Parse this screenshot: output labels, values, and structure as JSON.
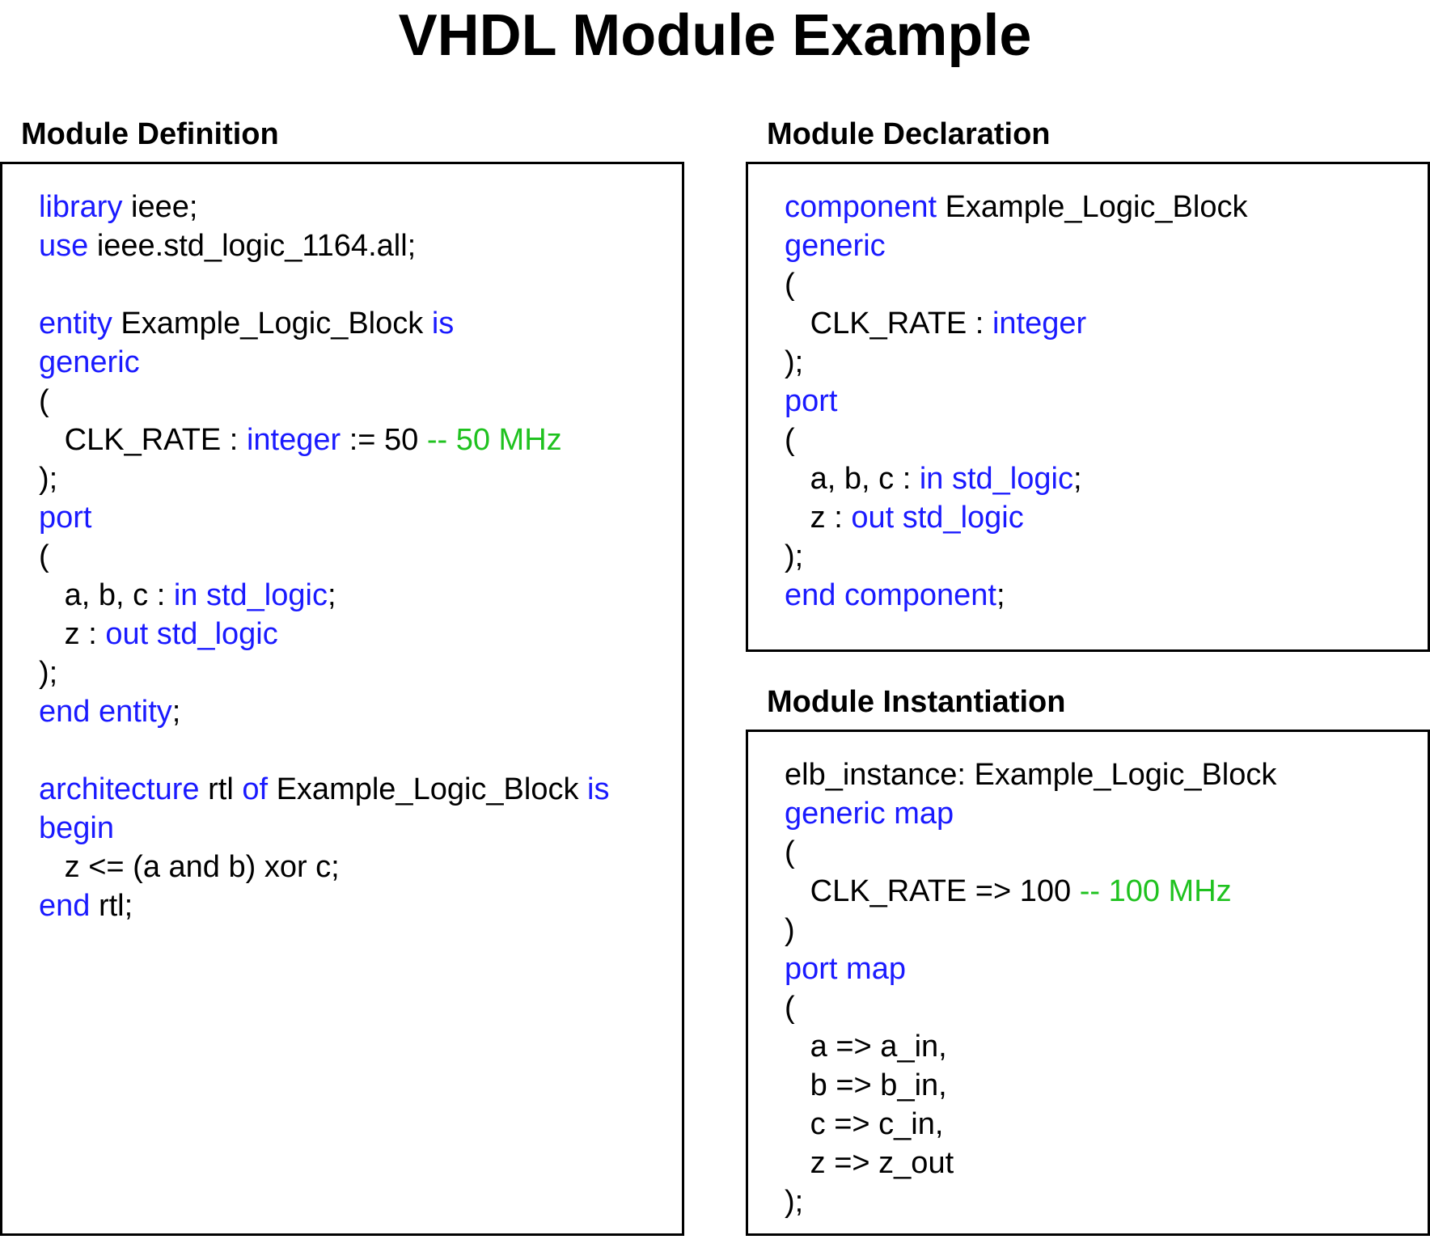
{
  "title": "VHDL Module Example",
  "colors": {
    "keyword": "#1a1aff",
    "comment": "#1fc21f",
    "text": "#000000",
    "border": "#000000"
  },
  "panels": {
    "definition": {
      "heading": "Module Definition",
      "lines": [
        [
          [
            "kw",
            "library"
          ],
          [
            "tx",
            " ieee;"
          ]
        ],
        [
          [
            "kw",
            "use"
          ],
          [
            "tx",
            " ieee.std_logic_1164.all;"
          ]
        ],
        [],
        [
          [
            "kw",
            "entity"
          ],
          [
            "tx",
            " Example_Logic_Block "
          ],
          [
            "kw",
            "is"
          ]
        ],
        [
          [
            "kw",
            "generic"
          ]
        ],
        [
          [
            "tx",
            "("
          ]
        ],
        [
          [
            "tx",
            "   CLK_RATE : "
          ],
          [
            "kw",
            "integer"
          ],
          [
            "tx",
            " := 50 "
          ],
          [
            "cm",
            "-- 50 MHz"
          ]
        ],
        [
          [
            "tx",
            ");"
          ]
        ],
        [
          [
            "kw",
            "port"
          ]
        ],
        [
          [
            "tx",
            "("
          ]
        ],
        [
          [
            "tx",
            "   a, b, c : "
          ],
          [
            "kw",
            "in std_logic"
          ],
          [
            "tx",
            ";"
          ]
        ],
        [
          [
            "tx",
            "   z : "
          ],
          [
            "kw",
            "out std_logic"
          ]
        ],
        [
          [
            "tx",
            ");"
          ]
        ],
        [
          [
            "kw",
            "end entity"
          ],
          [
            "tx",
            ";"
          ]
        ],
        [],
        [
          [
            "kw",
            "architecture"
          ],
          [
            "tx",
            " rtl "
          ],
          [
            "kw",
            "of"
          ],
          [
            "tx",
            " Example_Logic_Block "
          ],
          [
            "kw",
            "is"
          ]
        ],
        [
          [
            "kw",
            "begin"
          ]
        ],
        [
          [
            "tx",
            "   z <= (a and b) xor c;"
          ]
        ],
        [
          [
            "kw",
            "end"
          ],
          [
            "tx",
            " rtl;"
          ]
        ]
      ]
    },
    "declaration": {
      "heading": "Module Declaration",
      "lines": [
        [
          [
            "kw",
            "component"
          ],
          [
            "tx",
            " Example_Logic_Block"
          ]
        ],
        [
          [
            "kw",
            "generic"
          ]
        ],
        [
          [
            "tx",
            "("
          ]
        ],
        [
          [
            "tx",
            "   CLK_RATE : "
          ],
          [
            "kw",
            "integer"
          ]
        ],
        [
          [
            "tx",
            ");"
          ]
        ],
        [
          [
            "kw",
            "port"
          ]
        ],
        [
          [
            "tx",
            "("
          ]
        ],
        [
          [
            "tx",
            "   a, b, c : "
          ],
          [
            "kw",
            "in std_logic"
          ],
          [
            "tx",
            ";"
          ]
        ],
        [
          [
            "tx",
            "   z : "
          ],
          [
            "kw",
            "out std_logic"
          ]
        ],
        [
          [
            "tx",
            ");"
          ]
        ],
        [
          [
            "kw",
            "end component"
          ],
          [
            "tx",
            ";"
          ]
        ]
      ]
    },
    "instantiation": {
      "heading": "Module Instantiation",
      "lines": [
        [
          [
            "tx",
            "elb_instance: Example_Logic_Block"
          ]
        ],
        [
          [
            "kw",
            "generic map"
          ]
        ],
        [
          [
            "tx",
            "("
          ]
        ],
        [
          [
            "tx",
            "   CLK_RATE => 100 "
          ],
          [
            "cm",
            "-- 100 MHz"
          ]
        ],
        [
          [
            "tx",
            ")"
          ]
        ],
        [
          [
            "kw",
            "port map"
          ]
        ],
        [
          [
            "tx",
            "("
          ]
        ],
        [
          [
            "tx",
            "   a => a_in,"
          ]
        ],
        [
          [
            "tx",
            "   b => b_in,"
          ]
        ],
        [
          [
            "tx",
            "   c => c_in,"
          ]
        ],
        [
          [
            "tx",
            "   z => z_out"
          ]
        ],
        [
          [
            "tx",
            ");"
          ]
        ]
      ]
    }
  }
}
